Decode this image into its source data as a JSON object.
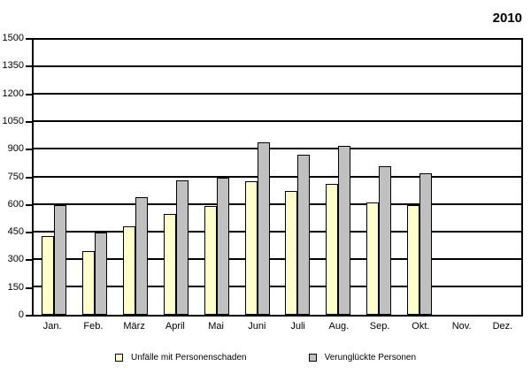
{
  "chart_data": {
    "type": "bar",
    "title": "2010",
    "categories": [
      "Jan.",
      "Feb.",
      "März",
      "April",
      "Mai",
      "Juni",
      "Juli",
      "Aug.",
      "Sep.",
      "Okt.",
      "Nov.",
      "Dez."
    ],
    "series": [
      {
        "name": "Unfälle mit Personenschaden",
        "color": "#FFFFCC",
        "values": [
          430,
          345,
          480,
          550,
          595,
          730,
          675,
          715,
          615,
          600,
          null,
          null
        ]
      },
      {
        "name": "Verunglückte Personen",
        "color": "#C0C0C0",
        "values": [
          600,
          450,
          640,
          735,
          750,
          940,
          875,
          920,
          810,
          770,
          null,
          null
        ]
      }
    ],
    "xlabel": "",
    "ylabel": "",
    "ylim": [
      0,
      1500
    ],
    "yticks": [
      0,
      150,
      300,
      450,
      600,
      750,
      900,
      1050,
      1200,
      1350,
      1500
    ],
    "grid": true,
    "grid_color": "#000000",
    "plot_background": "#FFFFFF",
    "legend_position": "bottom"
  }
}
